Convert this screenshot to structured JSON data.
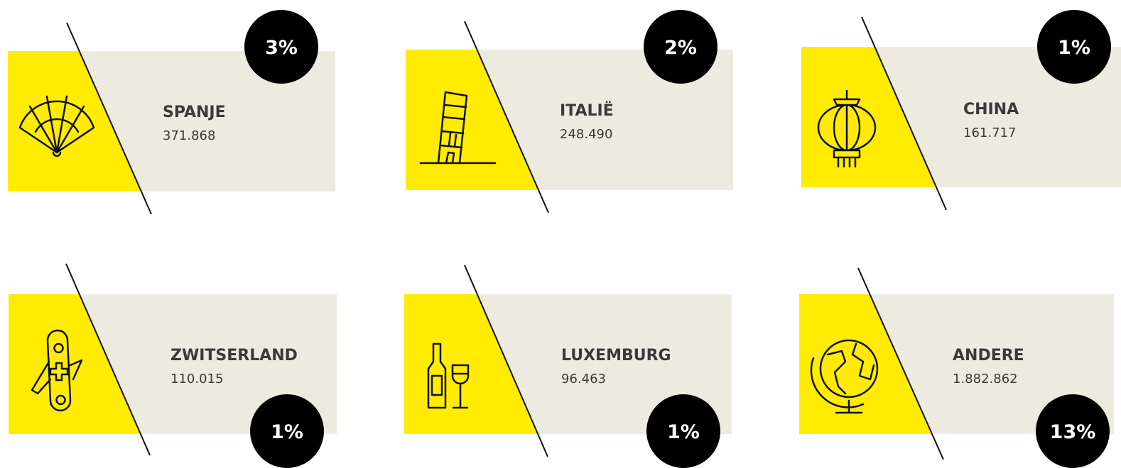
{
  "cards": [
    {
      "name": "SPANJE",
      "value": "371.868",
      "percent": "3%"
    },
    {
      "name": "ITALIË",
      "value": "248.490",
      "percent": "2%"
    },
    {
      "name": "CHINA",
      "value": "161.717",
      "percent": "1%"
    },
    {
      "name": "ZWITSERLAND",
      "value": "110.015",
      "percent": "1%"
    },
    {
      "name": "LUXEMBURG",
      "value": "96.463",
      "percent": "1%"
    },
    {
      "name": "ANDERE",
      "value": "1.882.862",
      "percent": "13%"
    }
  ]
}
